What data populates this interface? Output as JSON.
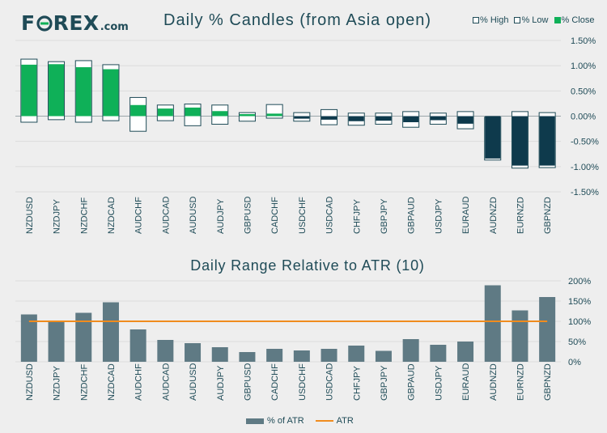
{
  "brand": {
    "name_pre": "F",
    "name_post": "REX",
    "domain": ".com"
  },
  "chart_data": [
    {
      "type": "candlestick",
      "title": "Daily % Candles (from Asia open)",
      "legend": {
        "high": "% High",
        "low": "% Low",
        "close": "% Close"
      },
      "categories": [
        "NZDUSD",
        "NZDJPY",
        "NZDCHF",
        "NZDCAD",
        "AUDCHF",
        "AUDCAD",
        "AUDUSD",
        "AUDJPY",
        "GBPUSD",
        "CADCHF",
        "USDCHF",
        "USDCAD",
        "CHFJPY",
        "GBPJPY",
        "GBPAUD",
        "USDJPY",
        "EURAUD",
        "AUDNZD",
        "EURNZD",
        "GBPNZD"
      ],
      "high": [
        1.13,
        1.08,
        1.1,
        1.02,
        0.37,
        0.22,
        0.24,
        0.22,
        0.07,
        0.23,
        0.07,
        0.13,
        0.06,
        0.06,
        0.09,
        0.06,
        0.09,
        -0.02,
        0.09,
        0.07
      ],
      "low": [
        -0.12,
        -0.07,
        -0.12,
        -0.09,
        -0.3,
        -0.09,
        -0.19,
        -0.16,
        -0.1,
        -0.04,
        -0.1,
        -0.17,
        -0.18,
        -0.16,
        -0.22,
        -0.16,
        -0.25,
        -0.87,
        -1.03,
        -1.02
      ],
      "close": [
        1.02,
        1.03,
        0.97,
        0.93,
        0.22,
        0.15,
        0.17,
        0.1,
        0.04,
        0.05,
        -0.05,
        -0.07,
        -0.1,
        -0.09,
        -0.12,
        -0.08,
        -0.15,
        -0.84,
        -0.98,
        -0.98
      ],
      "yticks": [
        "1.50%",
        "1.00%",
        "0.50%",
        "0.00%",
        "-0.50%",
        "-1.00%",
        "-1.50%"
      ],
      "ylim": [
        -1.5,
        1.5
      ],
      "colors": {
        "up": "#0fb058",
        "down": "#0e3a4c",
        "range": "#ffffff",
        "outline": "#1f4b57"
      }
    },
    {
      "type": "bar",
      "title": "Daily Range Relative to ATR (10)",
      "legend": {
        "bar": "% of ATR",
        "line": "ATR"
      },
      "categories": [
        "NZDUSD",
        "NZDJPY",
        "NZDCHF",
        "NZDCAD",
        "AUDCHF",
        "AUDCAD",
        "AUDUSD",
        "AUDJPY",
        "GBPUSD",
        "CADCHF",
        "USDCHF",
        "USDCAD",
        "CHFJPY",
        "GBPJPY",
        "GBPAUD",
        "USDJPY",
        "EURAUD",
        "AUDNZD",
        "EURNZD",
        "GBPNZD"
      ],
      "values": [
        117,
        100,
        121,
        147,
        80,
        54,
        46,
        36,
        24,
        32,
        28,
        32,
        40,
        27,
        56,
        42,
        50,
        189,
        127,
        160
      ],
      "atr_line": 100,
      "yticks": [
        "200%",
        "150%",
        "100%",
        "50%",
        "0%"
      ],
      "ylim": [
        0,
        200
      ],
      "colors": {
        "bar": "#5f7a84",
        "line": "#f08c1e"
      }
    }
  ]
}
